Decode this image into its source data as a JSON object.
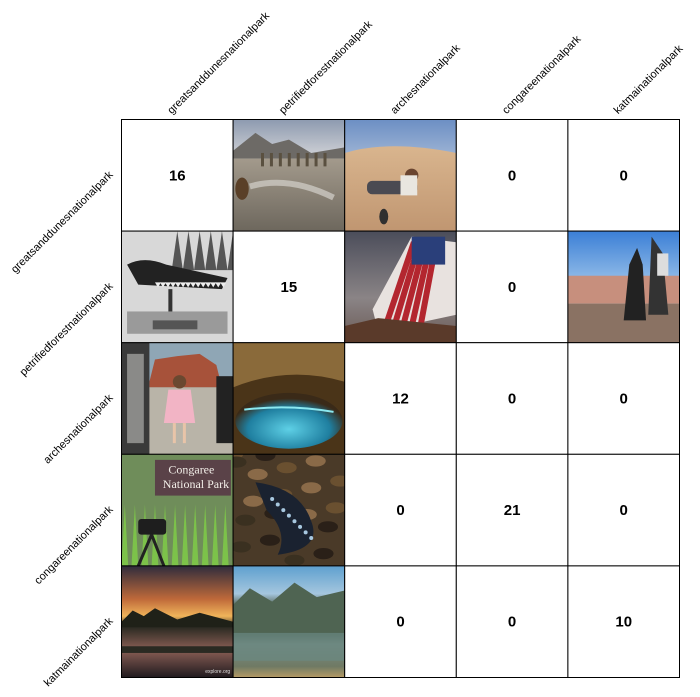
{
  "chart_data": {
    "type": "table",
    "title": "",
    "columns": [
      "greatsanddunesnationalpark",
      "petrifiedforestnationalpark",
      "archesnationalpark",
      "congareenationalpark",
      "katmainationalpark"
    ],
    "rows": [
      "greatsanddunesnationalpark",
      "petrifiedforestnationalpark",
      "archesnationalpark",
      "congareenationalpark",
      "katmainationalpark"
    ],
    "cells": [
      [
        {
          "count": 16
        },
        {
          "image": "wet sand flats with dune grass and a dog"
        },
        {
          "image": "person lying on sand dunes"
        },
        {
          "count": 0
        },
        {
          "count": 0
        }
      ],
      [
        {
          "image": "black and white fossil reptile skull on display stand"
        },
        {
          "count": 15
        },
        {
          "image": "american flag over rock ledge at dusk"
        },
        {
          "count": 0
        },
        {
          "image": "two dogs on painted desert overlook"
        }
      ],
      [
        {
          "image": "woman in pink dress by red rock arches and car"
        },
        {
          "image": "turquoise cave hot spring pool"
        },
        {
          "count": 12
        },
        {
          "count": 0
        },
        {
          "count": 0
        }
      ],
      [
        {
          "image": "congaree national park sign with camera on tripod",
          "text": [
            "Congaree",
            "National Park"
          ]
        },
        {
          "image": "salamander close-up on leaf litter"
        },
        {
          "count": 0
        },
        {
          "count": 21
        },
        {
          "count": 0
        }
      ],
      [
        {
          "image": "sunset over calm lake with silhouetted trees",
          "text": [
            "explore.org"
          ]
        },
        {
          "image": "mountain cliffs reflected in lake"
        },
        {
          "count": 0
        },
        {
          "count": 0
        },
        {
          "count": 10
        }
      ]
    ]
  }
}
